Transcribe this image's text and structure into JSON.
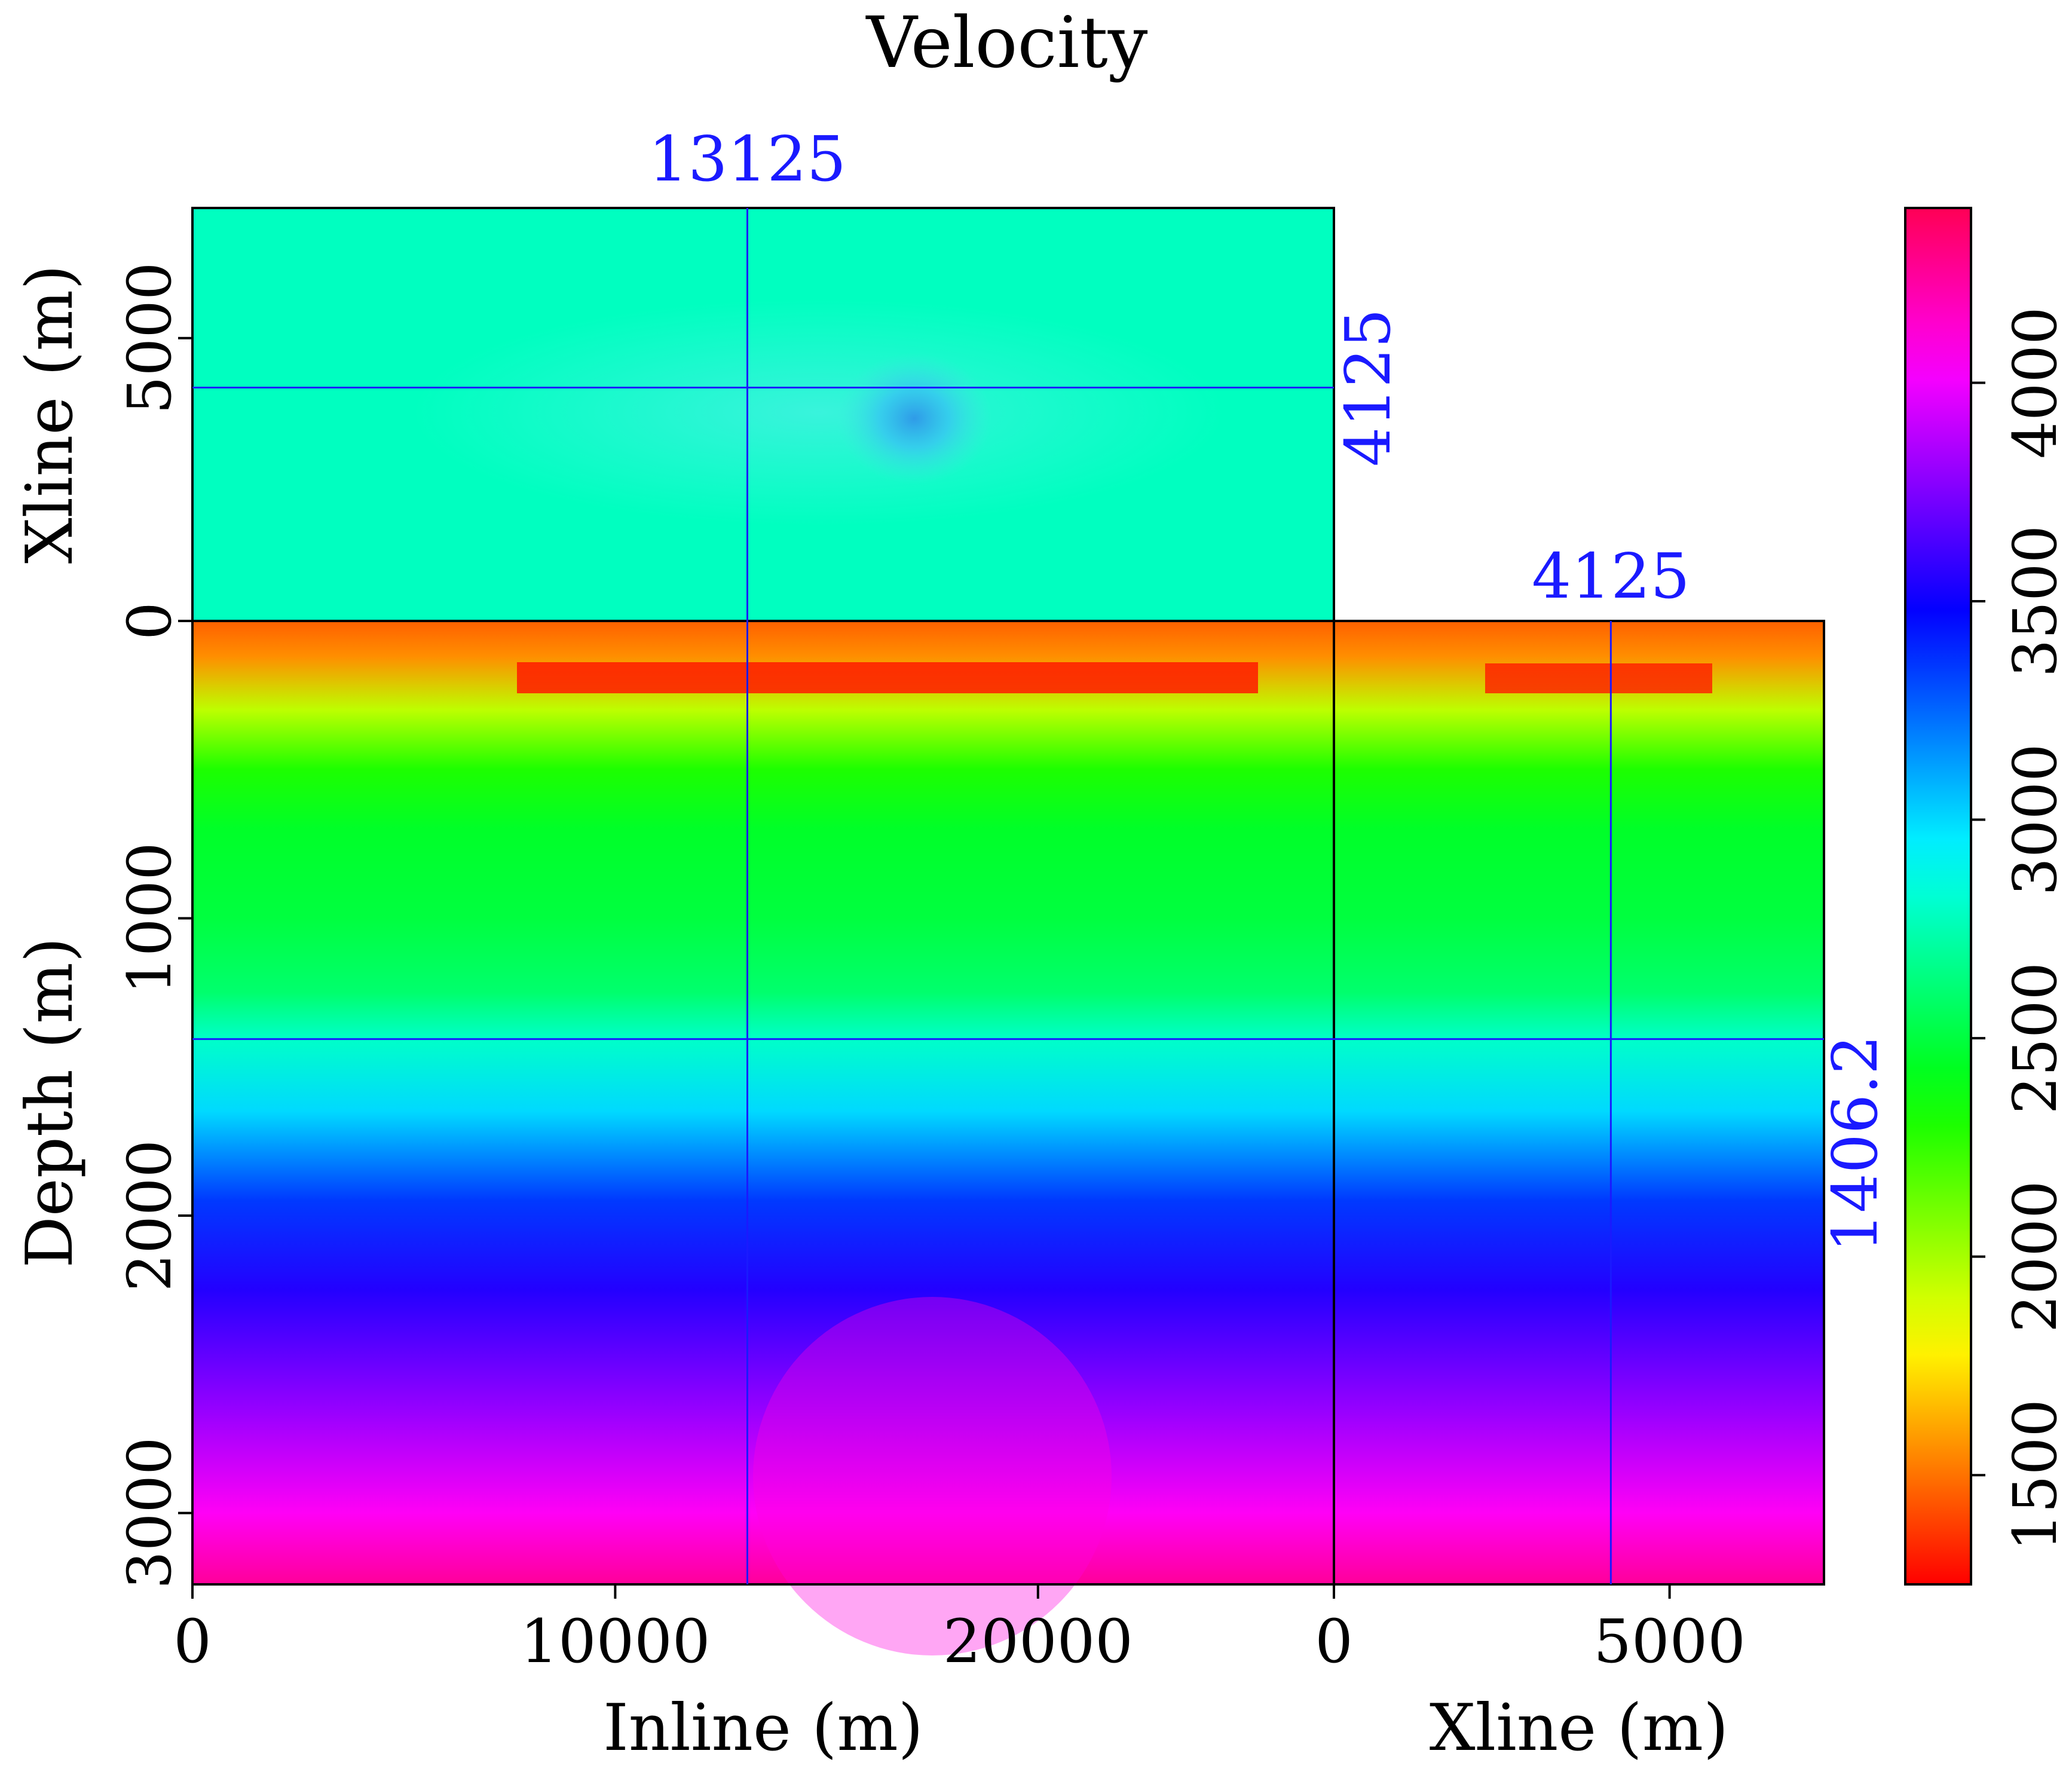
{
  "chart_data": {
    "type": "heatmap",
    "title": "Velocity",
    "panels": {
      "depth_slice": {
        "xlabel": "Inline (m)",
        "ylabel": "Xline (m)",
        "xlim": [
          0,
          27000
        ],
        "ylim": [
          0,
          7300
        ],
        "yticks": [
          0,
          5000
        ]
      },
      "inline_section": {
        "xlabel": "Inline (m)",
        "ylabel": "Depth (m)",
        "xlim": [
          0,
          27000
        ],
        "ylim": [
          3240,
          0
        ],
        "xticks": [
          0,
          10000,
          20000
        ],
        "yticks": [
          0,
          1000,
          2000,
          3000
        ]
      },
      "xline_section": {
        "xlabel": "Xline (m)",
        "xlim": [
          0,
          7300
        ],
        "xticks": [
          0,
          5000
        ]
      }
    },
    "slice_markers": {
      "inline": 13125,
      "inline_label": "13125",
      "xline": 4125,
      "xline_label_top": "4125",
      "xline_label_side": "4125",
      "depth": 1406.2,
      "depth_label": "1406.2"
    },
    "colorbar": {
      "min": 1250,
      "max": 4400,
      "ticks": [
        1500,
        2000,
        2500,
        3000,
        3500,
        4000
      ],
      "colormap": "hue-rainbow: red-yellow-green-cyan-blue-magenta-red"
    },
    "velocity_profile": {
      "depth_m": [
        0,
        120,
        300,
        500,
        700,
        1000,
        1250,
        1406.2,
        1650,
        1950,
        2250,
        2650,
        3000,
        3240
      ],
      "velocity_mps": [
        1460,
        1560,
        1950,
        2300,
        2450,
        2500,
        2600,
        2800,
        3000,
        3350,
        3550,
        3800,
        4050,
        4250
      ]
    },
    "depth_slice_velocity_mps": {
      "background": 2780,
      "anomaly": 3200
    }
  },
  "colors": {
    "marker_line": "#1a1aff",
    "marker_text": "#1a1aff",
    "axis": "#000000"
  }
}
